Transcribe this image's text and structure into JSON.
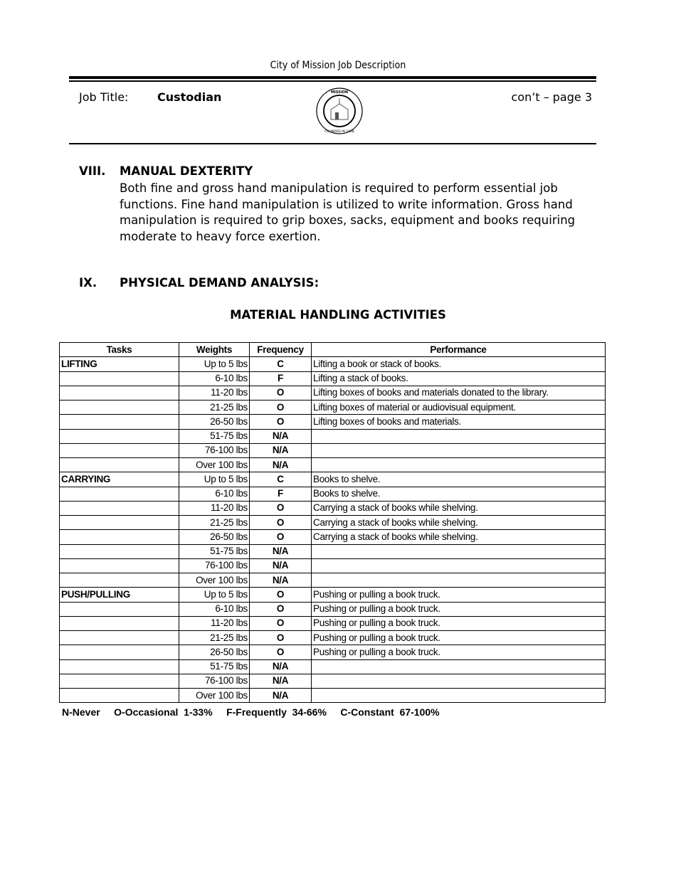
{
  "header": {
    "title": "City of Mission Job Description",
    "job_title_label": "Job Title:",
    "job_title": "Custodian",
    "page": "con’t – page 3",
    "seal_text": "CITY OF MISSION, TEXAS · FOUNDED IN 1908"
  },
  "sections": [
    {
      "number": "VIII.",
      "title": "MANUAL DEXTERITY",
      "body": "Both fine and gross hand manipulation is required to perform essential job functions. Fine hand manipulation is utilized to write information. Gross hand manipulation is required to grip boxes, sacks, equipment and books requiring moderate to heavy force exertion."
    },
    {
      "number": "IX.",
      "title": "PHYSICAL DEMAND ANALYSIS:"
    }
  ],
  "table": {
    "title": "MATERIAL HANDLING ACTIVITIES",
    "headers": [
      "Tasks",
      "Weights",
      "Frequency",
      "Performance"
    ],
    "rows": [
      [
        "LIFTING",
        "Up to 5 lbs",
        "C",
        "Lifting a book or stack of books."
      ],
      [
        "",
        "6-10 lbs",
        "F",
        "Lifting a stack of books."
      ],
      [
        "",
        "11-20 lbs",
        "O",
        "Lifting boxes of books and materials donated to the library."
      ],
      [
        "",
        "21-25 lbs",
        "O",
        "Lifting boxes of material or audiovisual equipment."
      ],
      [
        "",
        "26-50 lbs",
        "O",
        "Lifting boxes of books and materials."
      ],
      [
        "",
        "51-75 lbs",
        "N/A",
        ""
      ],
      [
        "",
        "76-100 lbs",
        "N/A",
        ""
      ],
      [
        "",
        "Over 100 lbs",
        "N/A",
        ""
      ],
      [
        "CARRYING",
        "Up to 5 lbs",
        "C",
        "Books to shelve."
      ],
      [
        "",
        "6-10 lbs",
        "F",
        "Books to shelve."
      ],
      [
        "",
        "11-20 lbs",
        "O",
        "Carrying a stack of books while shelving."
      ],
      [
        "",
        "21-25 lbs",
        "O",
        "Carrying a stack of books while shelving."
      ],
      [
        "",
        "26-50 lbs",
        "O",
        "Carrying a stack of books while shelving."
      ],
      [
        "",
        "51-75 lbs",
        "N/A",
        ""
      ],
      [
        "",
        "76-100 lbs",
        "N/A",
        ""
      ],
      [
        "",
        "Over 100 lbs",
        "N/A",
        ""
      ],
      [
        "PUSH/PULLING",
        "Up to 5 lbs",
        "O",
        "Pushing or pulling a book truck."
      ],
      [
        "",
        "6-10 lbs",
        "O",
        "Pushing or pulling a book truck."
      ],
      [
        "",
        "11-20 lbs",
        "O",
        "Pushing or pulling a book truck."
      ],
      [
        "",
        "21-25 lbs",
        "O",
        "Pushing or pulling a book truck."
      ],
      [
        "",
        "26-50 lbs",
        "O",
        "Pushing or pulling a book truck."
      ],
      [
        "",
        "51-75 lbs",
        "N/A",
        ""
      ],
      [
        "",
        "76-100 lbs",
        "N/A",
        ""
      ],
      [
        "",
        "Over 100 lbs",
        "N/A",
        ""
      ]
    ],
    "legend": "N-Never     O-Occasional  1-33%     F-Frequently  34-66%     C-Constant  67-100%"
  }
}
